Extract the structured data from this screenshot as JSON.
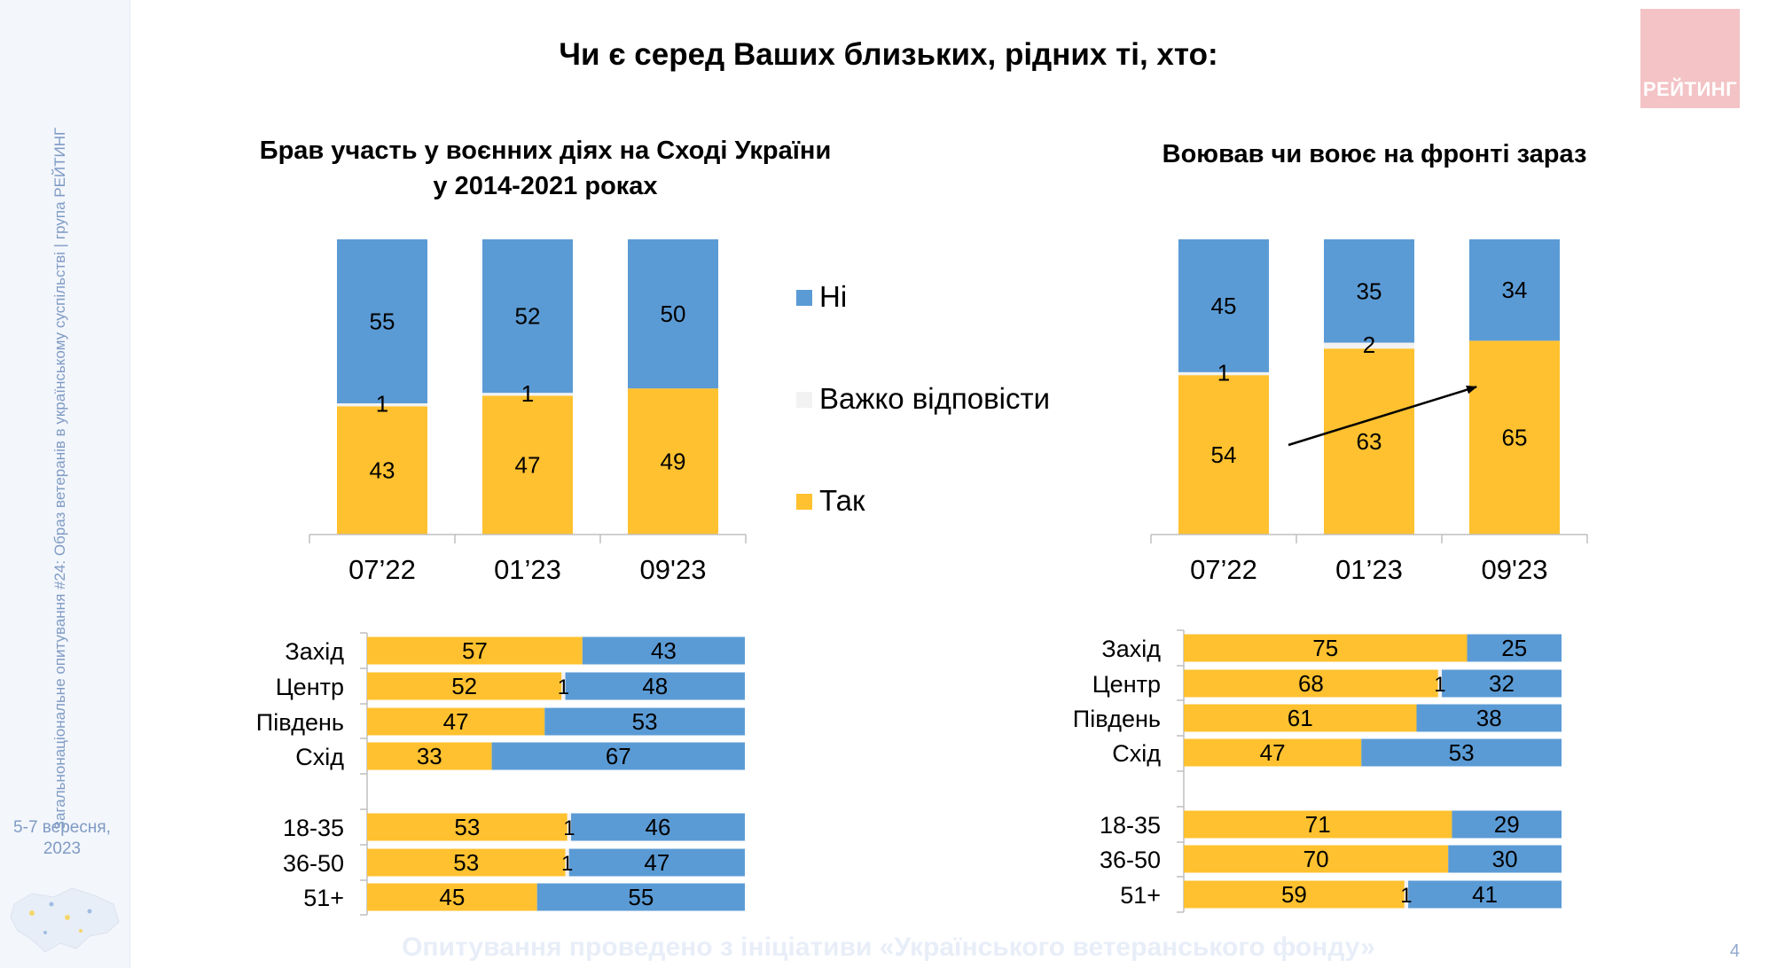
{
  "slide": {
    "title": "Чи є серед Ваших близьких, рідних ті, хто:",
    "sidebar_text": "Загальнонаціональне опитування #24: Образ ветеранів в українському суспільстві | група РЕЙТИНГ",
    "date_line1": "5-7 вересня,",
    "date_line2": "2023",
    "logo_text": "РЕЙТИНГ",
    "footer": "Опитування проведено з ініціативи «Українського ветеранського фонду»",
    "page_number": "4"
  },
  "legend": [
    {
      "label": "Ні",
      "color": "#5b9bd5"
    },
    {
      "label": "Важко відповісти",
      "color": "#f2f2f2"
    },
    {
      "label": "Так",
      "color": "#ffc12f"
    }
  ],
  "colors": {
    "yes": "#ffc12f",
    "dk": "#f2f2f2",
    "no": "#5b9bd5",
    "axis": "#bfbfbf",
    "arrow": "#000000"
  },
  "chart_data": [
    {
      "type": "bar",
      "stacked": true,
      "title_line1": "Брав участь у воєнних діях на Сході України",
      "title_line2": "у 2014-2021 роках",
      "categories": [
        "07’22",
        "01’23",
        "09'23"
      ],
      "series": [
        {
          "name": "Так",
          "values": [
            43,
            47,
            49
          ]
        },
        {
          "name": "Важко відповісти",
          "values": [
            1,
            1,
            null
          ]
        },
        {
          "name": "Ні",
          "values": [
            55,
            52,
            50
          ]
        }
      ]
    },
    {
      "type": "bar",
      "stacked": true,
      "title_line1": "Воював чи воює на фронті зараз",
      "title_line2": "",
      "categories": [
        "07’22",
        "01’23",
        "09'23"
      ],
      "series": [
        {
          "name": "Так",
          "values": [
            54,
            63,
            65
          ]
        },
        {
          "name": "Важко відповісти",
          "values": [
            1,
            2,
            null
          ]
        },
        {
          "name": "Ні",
          "values": [
            45,
            35,
            34
          ]
        }
      ],
      "annotation": "upward trend arrow from 07’22 to 09'23"
    },
    {
      "type": "bar",
      "orientation": "horizontal",
      "stacked": true,
      "groups": [
        {
          "categories": [
            "Захід",
            "Центр",
            "Південь",
            "Схід"
          ]
        },
        {
          "categories": [
            "18-35",
            "36-50",
            "51+"
          ]
        }
      ],
      "categories": [
        "Захід",
        "Центр",
        "Південь",
        "Схід",
        "18-35",
        "36-50",
        "51+"
      ],
      "series": [
        {
          "name": "Так",
          "values": [
            57,
            52,
            47,
            33,
            53,
            53,
            45
          ]
        },
        {
          "name": "Важко відповісти",
          "values": [
            null,
            1,
            null,
            null,
            1,
            1,
            null
          ]
        },
        {
          "name": "Ні",
          "values": [
            43,
            48,
            53,
            67,
            46,
            47,
            55
          ]
        }
      ]
    },
    {
      "type": "bar",
      "orientation": "horizontal",
      "stacked": true,
      "groups": [
        {
          "categories": [
            "Захід",
            "Центр",
            "Південь",
            "Схід"
          ]
        },
        {
          "categories": [
            "18-35",
            "36-50",
            "51+"
          ]
        }
      ],
      "categories": [
        "Захід",
        "Центр",
        "Південь",
        "Схід",
        "18-35",
        "36-50",
        "51+"
      ],
      "series": [
        {
          "name": "Так",
          "values": [
            75,
            68,
            61,
            47,
            71,
            70,
            59
          ]
        },
        {
          "name": "Важко відповісти",
          "values": [
            null,
            1,
            null,
            null,
            null,
            null,
            1
          ]
        },
        {
          "name": "Ні",
          "values": [
            25,
            32,
            38,
            53,
            29,
            30,
            41
          ]
        }
      ]
    }
  ]
}
